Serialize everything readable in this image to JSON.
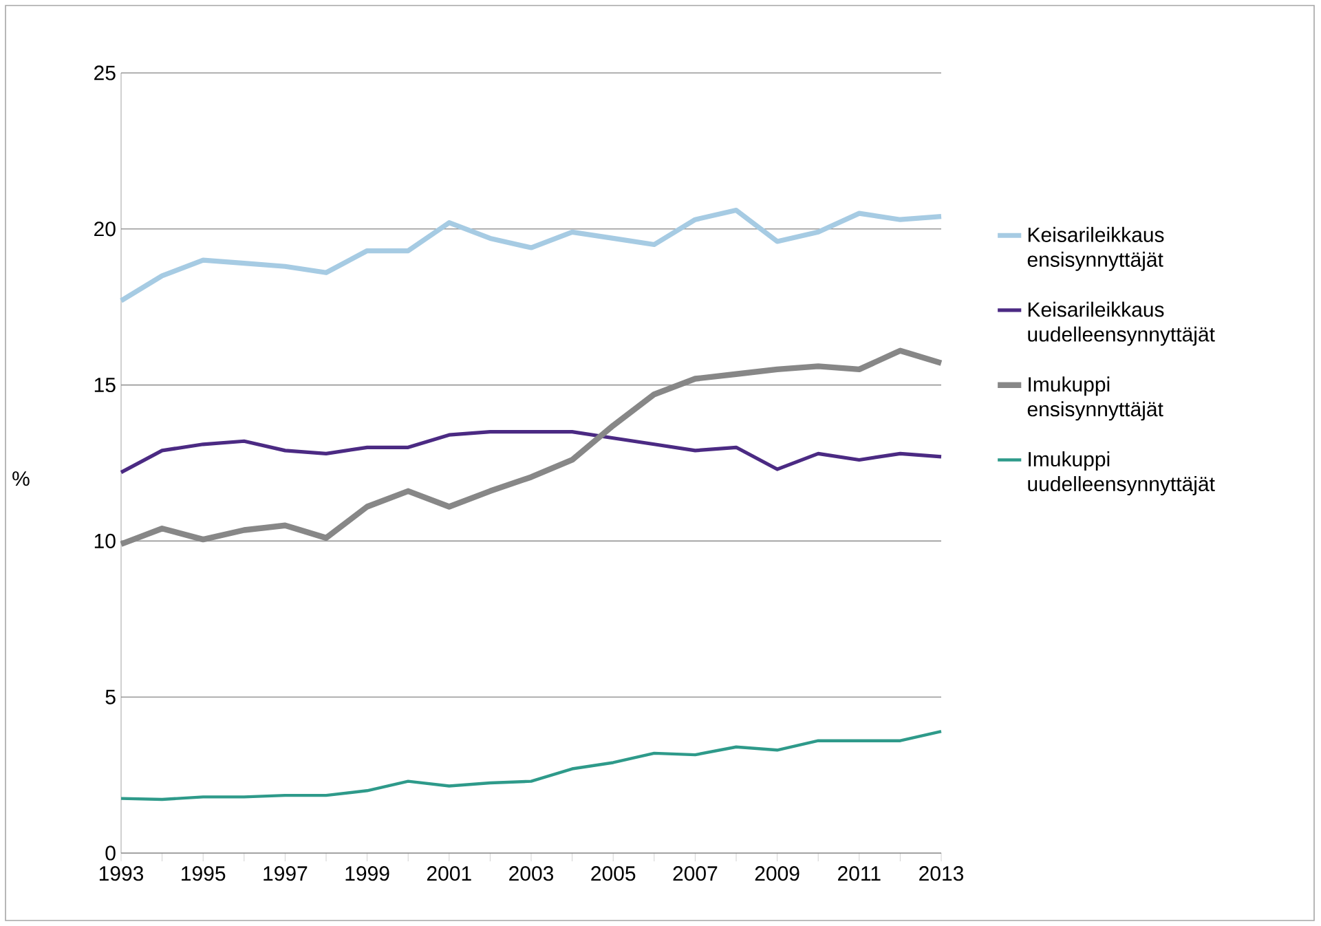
{
  "chart_data": {
    "type": "line",
    "ylabel": "%",
    "x": [
      1993,
      1994,
      1995,
      1996,
      1997,
      1998,
      1999,
      2000,
      2001,
      2002,
      2003,
      2004,
      2005,
      2006,
      2007,
      2008,
      2009,
      2010,
      2011,
      2012,
      2013
    ],
    "xlim": [
      1993,
      2013
    ],
    "xticks": [
      1993,
      {
        "value": 1994,
        "label": null
      },
      1995,
      {
        "value": 1996,
        "label": null
      },
      1997,
      {
        "value": 1998,
        "label": null
      },
      1999,
      {
        "value": 2000,
        "label": null
      },
      2001,
      {
        "value": 2002,
        "label": null
      },
      2003,
      {
        "value": 2004,
        "label": null
      },
      2005,
      {
        "value": 2006,
        "label": null
      },
      2007,
      {
        "value": 2008,
        "label": null
      },
      2009,
      {
        "value": 2010,
        "label": null
      },
      2011,
      {
        "value": 2012,
        "label": null
      },
      2013
    ],
    "ylim": [
      0,
      25
    ],
    "yticks": [
      0,
      5,
      10,
      15,
      20,
      25
    ],
    "grid": "y",
    "legend": "right",
    "marker": "none",
    "line_style": "solid",
    "series": [
      {
        "name": "Keisarileikkaus ensisynnyttäjät",
        "color": "#a6cbe3",
        "values": [
          17.7,
          18.5,
          19.0,
          18.9,
          18.8,
          18.6,
          19.3,
          19.3,
          20.2,
          19.7,
          19.4,
          19.9,
          19.7,
          19.5,
          20.3,
          20.6,
          19.6,
          19.9,
          20.5,
          20.3,
          20.4
        ]
      },
      {
        "name": "Keisarileikkaus uudelleensynnyttäjät",
        "color": "#4b2a83",
        "values": [
          12.2,
          12.9,
          13.1,
          13.2,
          12.9,
          12.8,
          13.0,
          13.0,
          13.4,
          13.5,
          13.5,
          13.5,
          13.3,
          13.1,
          12.9,
          13.0,
          12.3,
          12.8,
          12.6,
          12.8,
          12.7
        ]
      },
      {
        "name": "Imukuppi ensisynnyttäjät",
        "color": "#878787",
        "values": [
          9.9,
          10.4,
          10.05,
          10.35,
          10.5,
          10.1,
          11.1,
          11.6,
          11.1,
          11.6,
          12.05,
          12.6,
          13.7,
          14.7,
          15.2,
          15.35,
          15.5,
          15.6,
          15.5,
          16.1,
          15.7
        ]
      },
      {
        "name": "Imukuppi uudelleensynnyttäjät",
        "color": "#2e9a8a",
        "values": [
          1.75,
          1.72,
          1.8,
          1.8,
          1.85,
          1.85,
          2.0,
          2.3,
          2.15,
          2.25,
          2.3,
          2.7,
          2.9,
          3.2,
          3.15,
          3.4,
          3.3,
          3.6,
          3.6,
          3.6,
          3.9
        ]
      }
    ]
  }
}
